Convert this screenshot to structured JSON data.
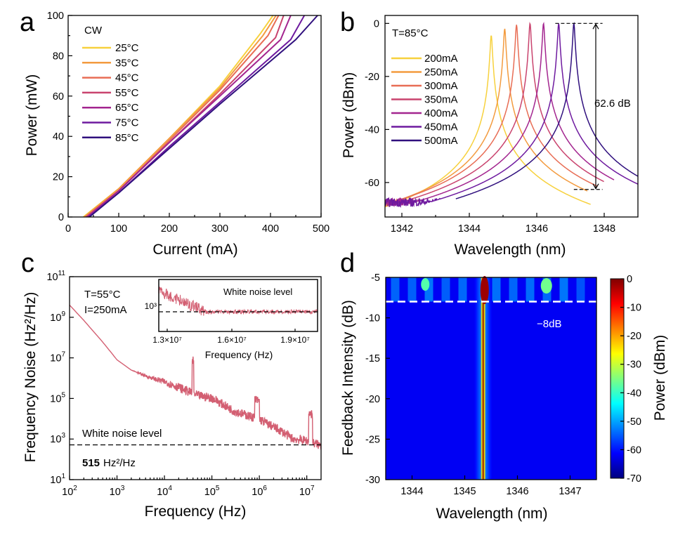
{
  "panel_labels": [
    "a",
    "b",
    "c",
    "d"
  ],
  "chart_data": [
    {
      "panel": "a",
      "type": "line",
      "xlabel": "Current (mA)",
      "ylabel": "Power (mW)",
      "xlim": [
        0,
        500
      ],
      "ylim": [
        0,
        100
      ],
      "xticks": [
        "0",
        "100",
        "200",
        "300",
        "400",
        "500"
      ],
      "yticks": [
        "0",
        "20",
        "40",
        "60",
        "80",
        "100"
      ],
      "legend_title": "CW",
      "legend_position": "top-left",
      "series": [
        {
          "name": "25°C",
          "color": "#f7d13d",
          "x": [
            30,
            100,
            200,
            300,
            380,
            405
          ],
          "y": [
            0,
            14,
            39,
            65,
            91,
            100
          ]
        },
        {
          "name": "35°C",
          "color": "#f39b3f",
          "x": [
            32,
            100,
            200,
            300,
            385,
            411
          ],
          "y": [
            0,
            14,
            39,
            64,
            90,
            100
          ]
        },
        {
          "name": "45°C",
          "color": "#e86d55",
          "x": [
            34,
            100,
            200,
            300,
            395,
            416
          ],
          "y": [
            0,
            13,
            38,
            63,
            90,
            100
          ]
        },
        {
          "name": "55°C",
          "color": "#c9436e",
          "x": [
            36,
            100,
            200,
            300,
            410,
            426
          ],
          "y": [
            0,
            13,
            37,
            61,
            89,
            100
          ]
        },
        {
          "name": "65°C",
          "color": "#a3258f",
          "x": [
            38,
            100,
            200,
            300,
            420,
            440
          ],
          "y": [
            0,
            13,
            37,
            60,
            88,
            100
          ]
        },
        {
          "name": "75°C",
          "color": "#6e1a9f",
          "x": [
            40,
            100,
            200,
            300,
            440,
            467
          ],
          "y": [
            0,
            12,
            35,
            57,
            88,
            100
          ]
        },
        {
          "name": "85°C",
          "color": "#30107e",
          "x": [
            42,
            100,
            200,
            300,
            450,
            493
          ],
          "y": [
            0,
            12,
            34,
            56,
            88,
            100
          ]
        }
      ]
    },
    {
      "panel": "b",
      "type": "line",
      "xlabel": "Wavelength (nm)",
      "ylabel": "Power (dBm)",
      "xlim": [
        1341.5,
        1349
      ],
      "ylim": [
        -73,
        3
      ],
      "xticks": [
        "1342",
        "1344",
        "1346",
        "1348"
      ],
      "yticks": [
        "0",
        "-20",
        "-40",
        "-60"
      ],
      "legend_title": "T=85°C",
      "legend_position": "top-left",
      "annotation": "62.6 dB",
      "series": [
        {
          "name": "200mA",
          "color": "#f7d13d",
          "peak_x": 1344.65,
          "peak_y": -4.5,
          "floor_y": -69,
          "range": [
            1341.5,
            1347.6
          ]
        },
        {
          "name": "250mA",
          "color": "#f39b3f",
          "peak_x": 1345.05,
          "peak_y": -2.0,
          "floor_y": -68,
          "range": [
            1341.5,
            1347.5
          ]
        },
        {
          "name": "300mA",
          "color": "#e86d55",
          "peak_x": 1345.4,
          "peak_y": -0.5,
          "floor_y": -68,
          "range": [
            1341.5,
            1347.8
          ]
        },
        {
          "name": "350mA",
          "color": "#c9436e",
          "peak_x": 1345.8,
          "peak_y": 0,
          "floor_y": -68,
          "range": [
            1341.5,
            1348.0
          ]
        },
        {
          "name": "400mA",
          "color": "#a3258f",
          "peak_x": 1346.2,
          "peak_y": 0,
          "floor_y": -67.5,
          "range": [
            1341.5,
            1348.3
          ]
        },
        {
          "name": "450mA",
          "color": "#6e1a9f",
          "peak_x": 1346.65,
          "peak_y": 0,
          "floor_y": -67.5,
          "range": [
            1341.5,
            1349
          ]
        },
        {
          "name": "500mA",
          "color": "#30107e",
          "peak_x": 1347.1,
          "peak_y": 0,
          "floor_y": -67.5,
          "range": [
            1343.6,
            1349
          ]
        }
      ]
    },
    {
      "panel": "c",
      "type": "line",
      "xlabel": "Frequency (Hz)",
      "ylabel": "Frequency Noise (Hz²/Hz)",
      "x_scale": "log",
      "y_scale": "log",
      "xlim": [
        100,
        20000000
      ],
      "ylim": [
        10,
        100000000000
      ],
      "xtick_exponents": [
        "2",
        "3",
        "4",
        "5",
        "6",
        "7"
      ],
      "ytick_exponents": [
        "1",
        "3",
        "5",
        "7",
        "9",
        "11"
      ],
      "params": {
        "T": "T=55°C",
        "I": "I=250mA"
      },
      "white_noise_label": "White noise level",
      "white_noise_value": "515",
      "white_noise_unit": "Hz²/Hz",
      "white_noise_level": 515,
      "series": [
        {
          "color": "#d35f72",
          "x": [
            100,
            200,
            500,
            1000,
            2000,
            5000,
            10000,
            30000,
            40000,
            50000,
            100000,
            300000,
            1000000,
            3000000,
            5000000,
            10000000,
            12000000,
            20000000
          ],
          "y": [
            4000000000,
            700000000,
            60000000,
            8000000,
            2500000,
            1000000,
            600000,
            200000,
            150000,
            120000,
            90000,
            20000,
            8000,
            2000,
            900,
            700,
            600,
            400
          ]
        }
      ],
      "inset": {
        "title": "White noise level",
        "xlabel": "Frequency (Hz)",
        "xticks": [
          "1.3×10⁷",
          "1.6×10⁷",
          "1.9×10⁷"
        ],
        "ytick": "10³"
      }
    },
    {
      "panel": "d",
      "type": "heatmap",
      "xlabel": "Wavelength (nm)",
      "ylabel": "Feedback Intensity (dB)",
      "xlim": [
        1343.5,
        1347.5
      ],
      "ylim": [
        -30,
        -5
      ],
      "xticks": [
        "1344",
        "1345",
        "1346",
        "1347"
      ],
      "yticks": [
        "-5",
        "-10",
        "-15",
        "-20",
        "-25",
        "-30"
      ],
      "colorbar_label": "Power (dBm)",
      "colorbar_ticks": [
        "0",
        "-10",
        "-20",
        "-30",
        "-40",
        "-50",
        "-60",
        "-70"
      ],
      "colorbar_range": [
        -70,
        0
      ],
      "threshold_label": "−8dB",
      "threshold_value": -8,
      "peak_wavelength": 1345.35
    }
  ]
}
